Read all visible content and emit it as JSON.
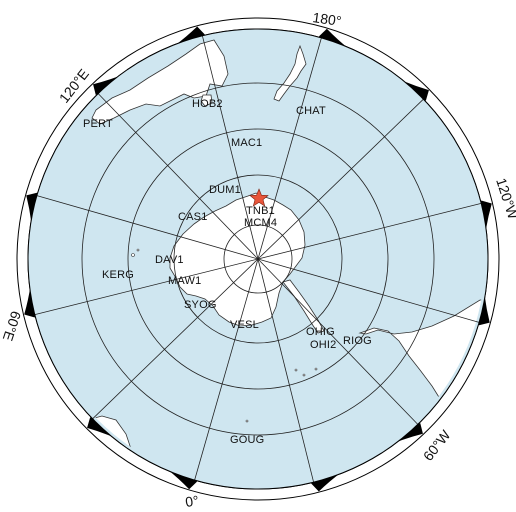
{
  "map": {
    "projection": "south-polar-stereographic",
    "ocean_color": "#cfe6f0",
    "land_color": "#ffffff",
    "frame_colors": [
      "#000000",
      "#ffffff"
    ],
    "marker_color": "#e8553a",
    "longitude_labels": [
      {
        "lon": 180,
        "text": "180°"
      },
      {
        "lon": 120,
        "text": "120°E"
      },
      {
        "lon": -120,
        "text": "120°W"
      },
      {
        "lon": 60,
        "text": "60°E"
      },
      {
        "lon": -60,
        "text": "60°W"
      },
      {
        "lon": 0,
        "text": "0°"
      }
    ],
    "stations": [
      {
        "id": "HOB2",
        "text": "HOB2"
      },
      {
        "id": "CHAT",
        "text": "CHAT"
      },
      {
        "id": "PERT",
        "text": "PERT"
      },
      {
        "id": "MAC1",
        "text": "MAC1"
      },
      {
        "id": "DUM1",
        "text": "DUM1"
      },
      {
        "id": "TNB1",
        "text": "TNB1"
      },
      {
        "id": "MCM4",
        "text": "MCM4"
      },
      {
        "id": "CAS1",
        "text": "CAS1"
      },
      {
        "id": "DAV1",
        "text": "DAV1"
      },
      {
        "id": "KERG",
        "text": "KERG"
      },
      {
        "id": "MAW1",
        "text": "MAW1"
      },
      {
        "id": "SYOG",
        "text": "SYOG"
      },
      {
        "id": "VESL",
        "text": "VESL"
      },
      {
        "id": "OHIG",
        "text": "OHIG"
      },
      {
        "id": "OHI2",
        "text": "OHI2"
      },
      {
        "id": "RIOG",
        "text": "RIOG"
      },
      {
        "id": "GOUG",
        "text": "GOUG"
      }
    ]
  }
}
